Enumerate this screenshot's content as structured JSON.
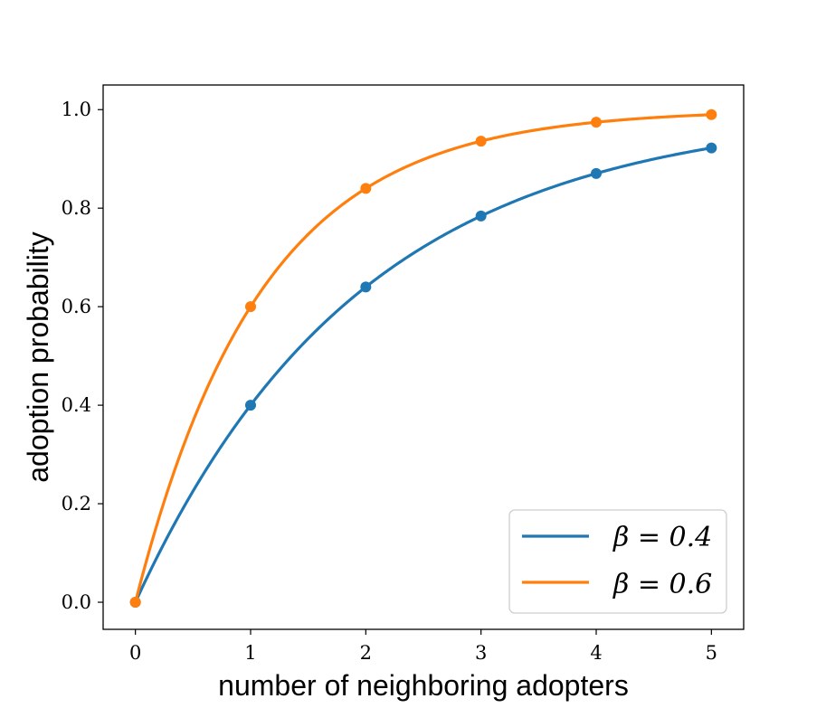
{
  "chart_data": {
    "type": "line",
    "title": "",
    "xlabel": "number of neighboring adopters",
    "ylabel": "adoption probability",
    "xlim": [
      -0.28,
      5.28
    ],
    "ylim": [
      -0.055,
      1.05
    ],
    "xticks": [
      0,
      1,
      2,
      3,
      4,
      5
    ],
    "xtick_labels": [
      "0",
      "1",
      "2",
      "3",
      "4",
      "5"
    ],
    "yticks": [
      0.0,
      0.2,
      0.4,
      0.6,
      0.8,
      1.0
    ],
    "ytick_labels": [
      "0.0",
      "0.2",
      "0.4",
      "0.6",
      "0.8",
      "1.0"
    ],
    "grid": false,
    "legend_position": "bottom-right",
    "series": [
      {
        "name": "β = 0.4",
        "color": "#1f77b4",
        "beta": 0.4,
        "x": [
          0,
          1,
          2,
          3,
          4,
          5
        ],
        "y": [
          0.0,
          0.4,
          0.64,
          0.784,
          0.8704,
          0.9222
        ]
      },
      {
        "name": "β = 0.6",
        "color": "#ff7f0e",
        "beta": 0.6,
        "x": [
          0,
          1,
          2,
          3,
          4,
          5
        ],
        "y": [
          0.0,
          0.6,
          0.84,
          0.936,
          0.9744,
          0.9898
        ]
      }
    ]
  }
}
